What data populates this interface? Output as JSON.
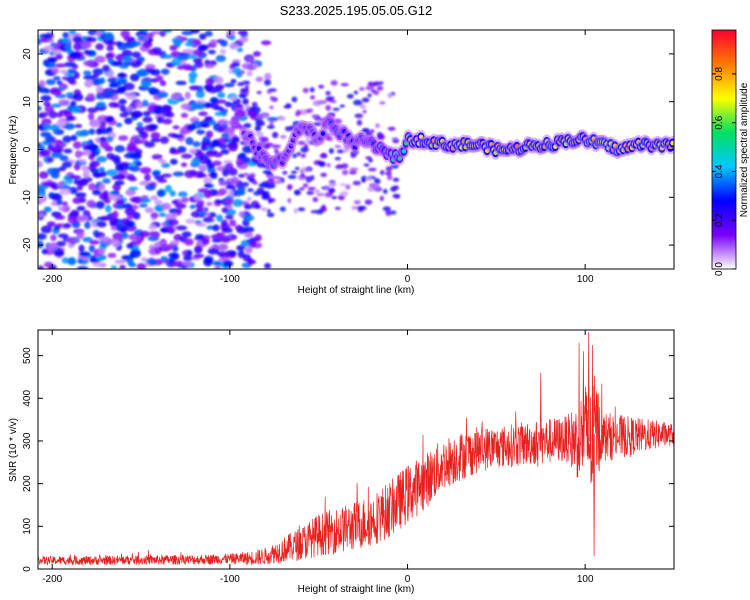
{
  "title": "S233.2025.195.05.05.G12",
  "colors": {
    "spectrum_line": "#7a1fe6",
    "snr_line": "#e8201e",
    "axis": "#000000"
  },
  "colormap": {
    "name": "rainbow",
    "stops": [
      "#ffffff",
      "#7a00ff",
      "#0000ff",
      "#00c8ff",
      "#00e060",
      "#ffff00",
      "#ff7a00",
      "#ff0030"
    ],
    "label": "Normalized spectral amplitude",
    "ticks": [
      0.0,
      0.2,
      0.4,
      0.6,
      0.8
    ],
    "tick_labels": [
      "0.0",
      "0.2",
      "0.4",
      "0.6",
      "0.8"
    ]
  },
  "chart_data": [
    {
      "type": "heatmap",
      "xlabel": "Height of straight line (km)",
      "ylabel": "Frequency (Hz)",
      "xlim": [
        -208,
        150
      ],
      "ylim": [
        -25,
        25
      ],
      "xticks": [
        -200,
        -100,
        0,
        100
      ],
      "xtick_labels": [
        "-200",
        "-100",
        "0",
        "100"
      ],
      "yticks": [
        -20,
        -10,
        0,
        10,
        20
      ],
      "ytick_labels": [
        "-20",
        "-10",
        "0",
        "10",
        "20"
      ],
      "colorbar_label": "Normalized spectral amplitude",
      "noise_region_x": [
        -208,
        -80
      ],
      "signal_trace": {
        "x": [
          -90,
          -85,
          -80,
          -75,
          -70,
          -65,
          -60,
          -55,
          -50,
          -45,
          -40,
          -35,
          -30,
          -25,
          -20,
          -15,
          -10,
          -5,
          0,
          5,
          10,
          20,
          30,
          40,
          50,
          60,
          70,
          80,
          90,
          100,
          110,
          120,
          130,
          140,
          150
        ],
        "freq": [
          3,
          0,
          -2,
          -3,
          -2,
          1,
          5,
          4,
          2,
          6,
          4,
          3,
          1,
          2,
          1,
          0,
          -1,
          -2,
          2,
          2,
          2,
          1,
          1,
          1,
          0,
          0,
          1,
          1,
          2,
          2,
          1,
          0,
          1,
          1,
          1
        ],
        "amplitude": [
          0.25,
          0.3,
          0.3,
          0.35,
          0.3,
          0.25,
          0.3,
          0.3,
          0.25,
          0.3,
          0.35,
          0.3,
          0.3,
          0.3,
          0.35,
          0.4,
          0.5,
          0.5,
          0.6,
          0.8,
          0.8,
          0.8,
          0.85,
          0.8,
          0.8,
          0.85,
          0.75,
          0.85,
          0.8,
          0.85,
          0.9,
          0.85,
          0.8,
          0.85,
          0.8
        ]
      }
    },
    {
      "type": "line",
      "xlabel": "Height of straight line (km)",
      "ylabel": "SNR (10 * v/v)",
      "xlim": [
        -208,
        150
      ],
      "ylim": [
        0,
        560
      ],
      "xticks": [
        -200,
        -100,
        0,
        100
      ],
      "xtick_labels": [
        "-200",
        "-100",
        "0",
        "100"
      ],
      "yticks": [
        0,
        100,
        200,
        300,
        400,
        500
      ],
      "ytick_labels": [
        "0",
        "100",
        "200",
        "300",
        "400",
        "500"
      ],
      "envelope": {
        "x": [
          -208,
          -180,
          -150,
          -120,
          -100,
          -90,
          -80,
          -70,
          -60,
          -50,
          -40,
          -30,
          -20,
          -10,
          0,
          10,
          20,
          30,
          40,
          50,
          60,
          70,
          80,
          90,
          95,
          100,
          103,
          106,
          110,
          120,
          130,
          140,
          150
        ],
        "y": [
          20,
          20,
          21,
          22,
          24,
          25,
          30,
          45,
          60,
          80,
          90,
          100,
          115,
          140,
          175,
          205,
          245,
          265,
          280,
          285,
          290,
          295,
          300,
          305,
          300,
          320,
          290,
          330,
          310,
          310,
          312,
          315,
          315
        ]
      },
      "noise_amplitude": {
        "x": [
          -208,
          -100,
          -80,
          -50,
          0,
          50,
          90,
          100,
          105,
          110,
          150
        ],
        "y": [
          10,
          12,
          20,
          50,
          70,
          50,
          55,
          120,
          140,
          60,
          25
        ]
      },
      "extremes": [
        {
          "x": 102,
          "y": 555
        },
        {
          "x": 105,
          "y": 30
        },
        {
          "x": 99,
          "y": 510
        },
        {
          "x": 75,
          "y": 460
        }
      ]
    }
  ]
}
